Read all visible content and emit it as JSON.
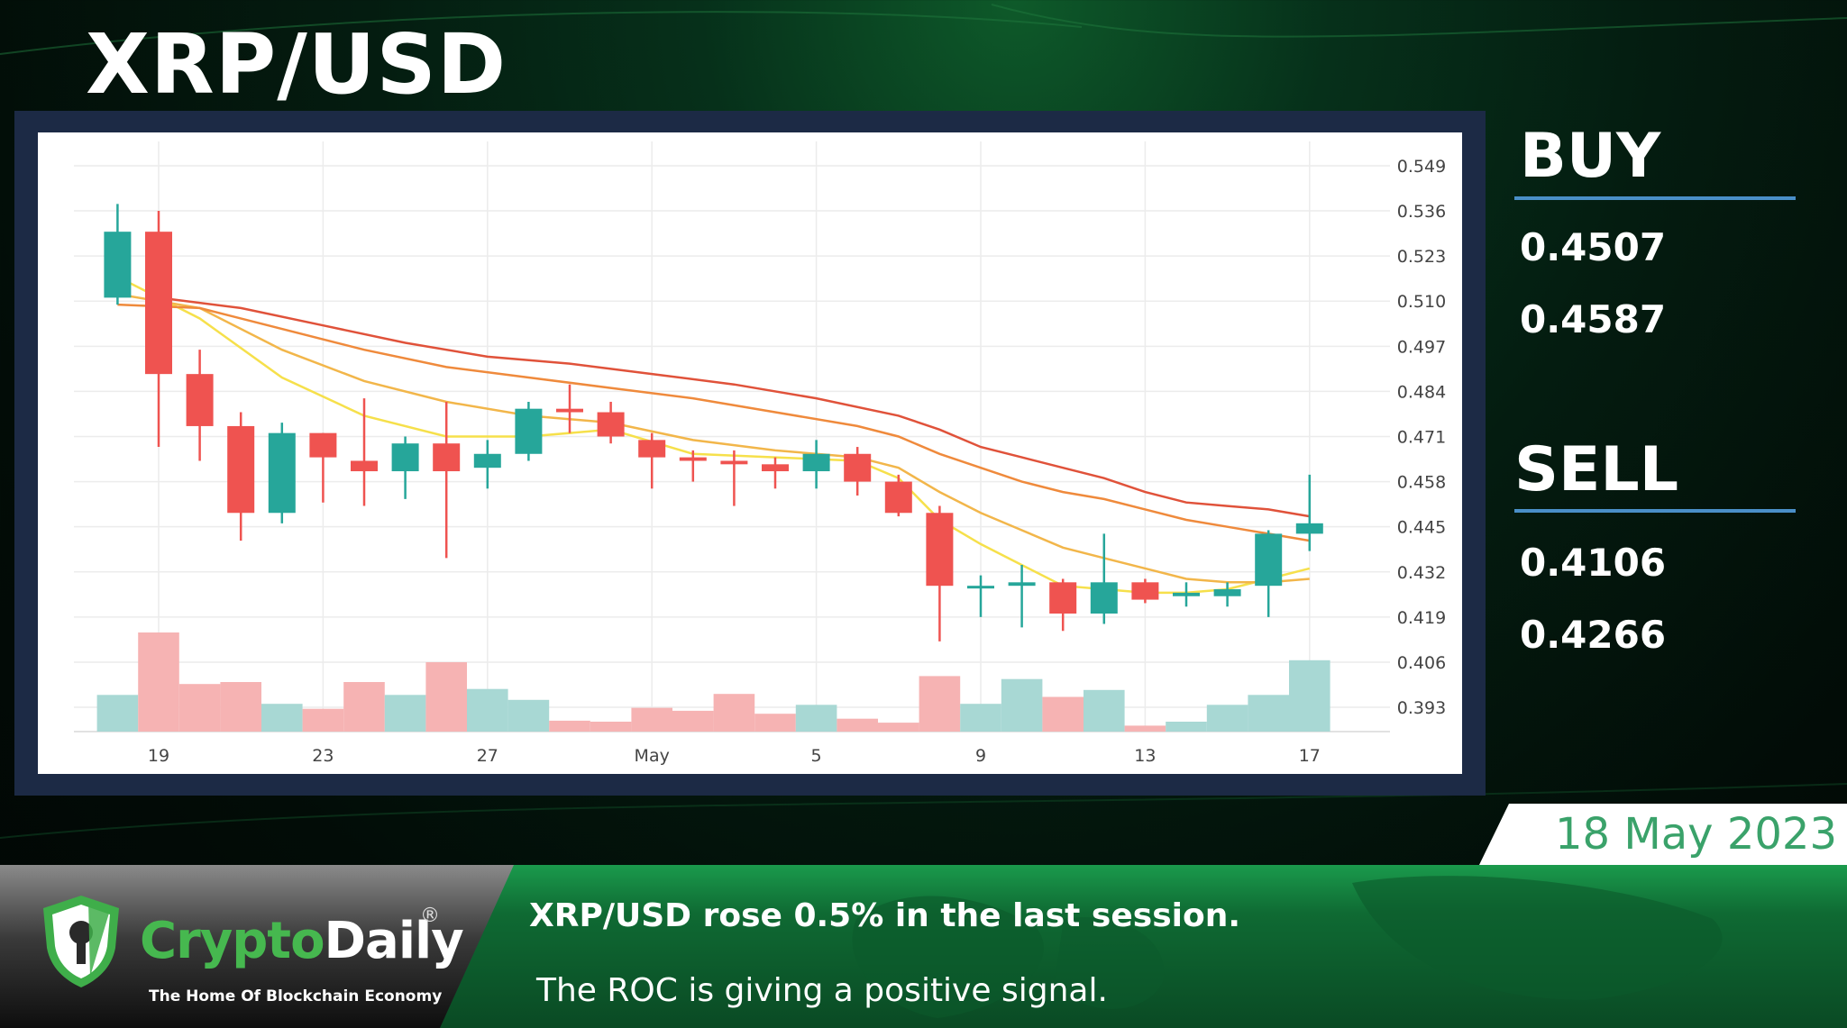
{
  "page_title": "XRP/USD",
  "buy": {
    "label": "BUY",
    "levels": [
      "0.4507",
      "0.4587"
    ]
  },
  "sell": {
    "label": "SELL",
    "levels": [
      "0.4106",
      "0.4266"
    ]
  },
  "date": "18 May 2023",
  "headline": "XRP/USD rose 0.5% in the last session.",
  "subline": "The ROC is giving a positive signal.",
  "logo": {
    "crypto": "Crypto",
    "daily": "Daily",
    "registered": "®",
    "tagline": "The Home Of Blockchain Economy"
  },
  "colors": {
    "up": "#26a69a",
    "down": "#ef5350",
    "frame": "#1c2a45",
    "accent_rule": "#4a8fc8",
    "ema_yellow": "#f6e04b",
    "ema_gold": "#f2b64a",
    "ema_orange": "#ef8a3c",
    "ema_red": "#e0523a"
  },
  "chart_data": {
    "type": "candlestick",
    "ylim": [
      0.386,
      0.556
    ],
    "y_ticks": [
      0.549,
      0.536,
      0.523,
      0.51,
      0.497,
      0.484,
      0.471,
      0.458,
      0.445,
      0.432,
      0.419,
      0.406,
      0.393
    ],
    "x_ticks": [
      {
        "day": 0,
        "label": "19"
      },
      {
        "day": 4,
        "label": "23"
      },
      {
        "day": 8,
        "label": "27"
      },
      {
        "day": 12,
        "label": "May"
      },
      {
        "day": 16,
        "label": "5"
      },
      {
        "day": 20,
        "label": "9"
      },
      {
        "day": 24,
        "label": "13"
      },
      {
        "day": 28,
        "label": "17"
      }
    ],
    "candles": [
      {
        "day": -1,
        "open": 0.511,
        "high": 0.538,
        "low": 0.509,
        "close": 0.53
      },
      {
        "day": 0,
        "open": 0.53,
        "high": 0.536,
        "low": 0.468,
        "close": 0.489
      },
      {
        "day": 1,
        "open": 0.489,
        "high": 0.496,
        "low": 0.464,
        "close": 0.474
      },
      {
        "day": 2,
        "open": 0.474,
        "high": 0.478,
        "low": 0.441,
        "close": 0.449
      },
      {
        "day": 3,
        "open": 0.449,
        "high": 0.475,
        "low": 0.446,
        "close": 0.472
      },
      {
        "day": 4,
        "open": 0.472,
        "high": 0.472,
        "low": 0.452,
        "close": 0.465
      },
      {
        "day": 5,
        "open": 0.464,
        "high": 0.482,
        "low": 0.451,
        "close": 0.461
      },
      {
        "day": 6,
        "open": 0.461,
        "high": 0.471,
        "low": 0.453,
        "close": 0.469
      },
      {
        "day": 7,
        "open": 0.469,
        "high": 0.481,
        "low": 0.436,
        "close": 0.461
      },
      {
        "day": 8,
        "open": 0.462,
        "high": 0.47,
        "low": 0.456,
        "close": 0.466
      },
      {
        "day": 9,
        "open": 0.466,
        "high": 0.481,
        "low": 0.464,
        "close": 0.479
      },
      {
        "day": 10,
        "open": 0.479,
        "high": 0.486,
        "low": 0.472,
        "close": 0.478
      },
      {
        "day": 11,
        "open": 0.478,
        "high": 0.481,
        "low": 0.469,
        "close": 0.471
      },
      {
        "day": 12,
        "open": 0.47,
        "high": 0.472,
        "low": 0.456,
        "close": 0.465
      },
      {
        "day": 13,
        "open": 0.465,
        "high": 0.467,
        "low": 0.458,
        "close": 0.464
      },
      {
        "day": 14,
        "open": 0.464,
        "high": 0.467,
        "low": 0.451,
        "close": 0.463
      },
      {
        "day": 15,
        "open": 0.463,
        "high": 0.465,
        "low": 0.456,
        "close": 0.461
      },
      {
        "day": 16,
        "open": 0.461,
        "high": 0.47,
        "low": 0.456,
        "close": 0.466
      },
      {
        "day": 17,
        "open": 0.466,
        "high": 0.468,
        "low": 0.454,
        "close": 0.458
      },
      {
        "day": 18,
        "open": 0.458,
        "high": 0.46,
        "low": 0.448,
        "close": 0.449
      },
      {
        "day": 19,
        "open": 0.449,
        "high": 0.451,
        "low": 0.412,
        "close": 0.428
      },
      {
        "day": 20,
        "open": 0.428,
        "high": 0.431,
        "low": 0.419,
        "close": 0.428
      },
      {
        "day": 21,
        "open": 0.428,
        "high": 0.434,
        "low": 0.416,
        "close": 0.429
      },
      {
        "day": 22,
        "open": 0.429,
        "high": 0.43,
        "low": 0.415,
        "close": 0.42
      },
      {
        "day": 23,
        "open": 0.42,
        "high": 0.443,
        "low": 0.417,
        "close": 0.429
      },
      {
        "day": 24,
        "open": 0.429,
        "high": 0.43,
        "low": 0.423,
        "close": 0.424
      },
      {
        "day": 25,
        "open": 0.425,
        "high": 0.429,
        "low": 0.422,
        "close": 0.426
      },
      {
        "day": 26,
        "open": 0.425,
        "high": 0.429,
        "low": 0.422,
        "close": 0.427
      },
      {
        "day": 27,
        "open": 0.428,
        "high": 0.444,
        "low": 0.419,
        "close": 0.443
      },
      {
        "day": 28,
        "open": 0.443,
        "high": 0.46,
        "low": 0.438,
        "close": 0.446
      }
    ],
    "volume_relative": [
      0.37,
      1.0,
      0.48,
      0.5,
      0.28,
      0.23,
      0.5,
      0.37,
      0.7,
      0.43,
      0.32,
      0.11,
      0.1,
      0.24,
      0.21,
      0.38,
      0.18,
      0.27,
      0.13,
      0.09,
      0.56,
      0.28,
      0.53,
      0.35,
      0.42,
      0.06,
      0.1,
      0.27,
      0.37,
      0.72
    ],
    "moving_averages": [
      {
        "color_key": "ema_yellow",
        "points": [
          [
            -1,
            0.517
          ],
          [
            1,
            0.505
          ],
          [
            3,
            0.488
          ],
          [
            5,
            0.477
          ],
          [
            7,
            0.471
          ],
          [
            9,
            0.471
          ],
          [
            11,
            0.473
          ],
          [
            13,
            0.466
          ],
          [
            15,
            0.465
          ],
          [
            17,
            0.464
          ],
          [
            18,
            0.459
          ],
          [
            19,
            0.447
          ],
          [
            20,
            0.44
          ],
          [
            21,
            0.434
          ],
          [
            22,
            0.428
          ],
          [
            23,
            0.427
          ],
          [
            24,
            0.426
          ],
          [
            25,
            0.426
          ],
          [
            26,
            0.427
          ],
          [
            27,
            0.43
          ],
          [
            28,
            0.433
          ]
        ]
      },
      {
        "color_key": "ema_gold",
        "points": [
          [
            -1,
            0.512
          ],
          [
            1,
            0.508
          ],
          [
            3,
            0.496
          ],
          [
            5,
            0.487
          ],
          [
            7,
            0.481
          ],
          [
            9,
            0.477
          ],
          [
            11,
            0.475
          ],
          [
            13,
            0.47
          ],
          [
            15,
            0.467
          ],
          [
            17,
            0.465
          ],
          [
            18,
            0.462
          ],
          [
            19,
            0.455
          ],
          [
            20,
            0.449
          ],
          [
            21,
            0.444
          ],
          [
            22,
            0.439
          ],
          [
            23,
            0.436
          ],
          [
            24,
            0.433
          ],
          [
            25,
            0.43
          ],
          [
            26,
            0.429
          ],
          [
            27,
            0.429
          ],
          [
            28,
            0.43
          ]
        ]
      },
      {
        "color_key": "ema_orange",
        "points": [
          [
            -1,
            0.509
          ],
          [
            1,
            0.508
          ],
          [
            3,
            0.502
          ],
          [
            5,
            0.496
          ],
          [
            7,
            0.491
          ],
          [
            9,
            0.488
          ],
          [
            11,
            0.485
          ],
          [
            13,
            0.482
          ],
          [
            15,
            0.478
          ],
          [
            17,
            0.474
          ],
          [
            18,
            0.471
          ],
          [
            19,
            0.466
          ],
          [
            20,
            0.462
          ],
          [
            21,
            0.458
          ],
          [
            22,
            0.455
          ],
          [
            23,
            0.453
          ],
          [
            24,
            0.45
          ],
          [
            25,
            0.447
          ],
          [
            26,
            0.445
          ],
          [
            27,
            0.443
          ],
          [
            28,
            0.441
          ]
        ]
      },
      {
        "color_key": "ema_red",
        "points": [
          [
            0,
            0.511
          ],
          [
            2,
            0.508
          ],
          [
            4,
            0.503
          ],
          [
            6,
            0.498
          ],
          [
            8,
            0.494
          ],
          [
            10,
            0.492
          ],
          [
            12,
            0.489
          ],
          [
            14,
            0.486
          ],
          [
            16,
            0.482
          ],
          [
            18,
            0.477
          ],
          [
            19,
            0.473
          ],
          [
            20,
            0.468
          ],
          [
            21,
            0.465
          ],
          [
            22,
            0.462
          ],
          [
            23,
            0.459
          ],
          [
            24,
            0.455
          ],
          [
            25,
            0.452
          ],
          [
            26,
            0.451
          ],
          [
            27,
            0.45
          ],
          [
            28,
            0.448
          ]
        ]
      }
    ]
  }
}
